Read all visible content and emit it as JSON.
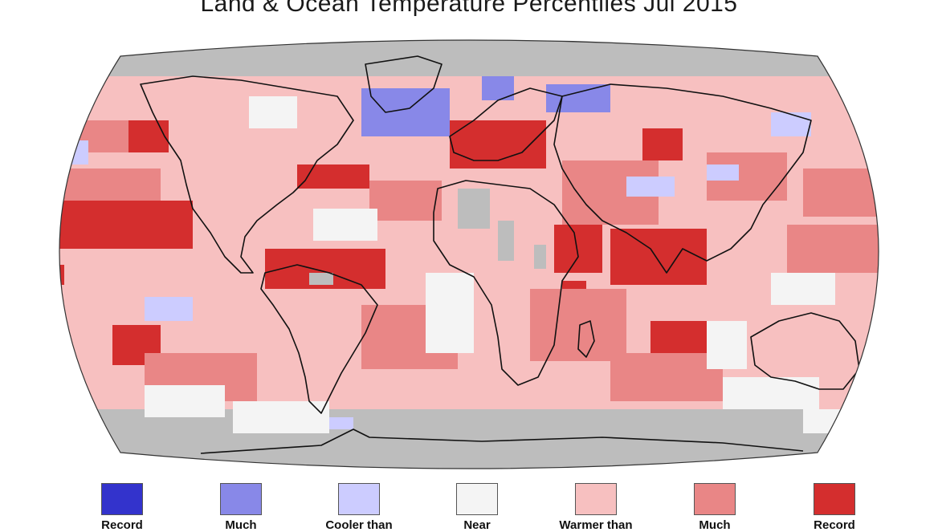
{
  "title": "Land & Ocean Temperature Percentiles Jul 2015",
  "colors": {
    "record_cold": "#3333cc",
    "much_cooler": "#8888e8",
    "cooler": "#ccccff",
    "near_average": "#f4f4f4",
    "warmer": "#f7c0c0",
    "much_warmer": "#e98686",
    "record_warm": "#d42e2e",
    "missing": "#bdbdbd",
    "outline": "#111111"
  },
  "legend": [
    {
      "label": "Record",
      "color": "#3333cc"
    },
    {
      "label": "Much",
      "color": "#8888e8"
    },
    {
      "label": "Cooler than",
      "color": "#ccccff"
    },
    {
      "label": "Near",
      "color": "#f4f4f4"
    },
    {
      "label": "Warmer than",
      "color": "#f7c0c0"
    },
    {
      "label": "Much",
      "color": "#e98686"
    },
    {
      "label": "Record",
      "color": "#d42e2e"
    }
  ]
}
